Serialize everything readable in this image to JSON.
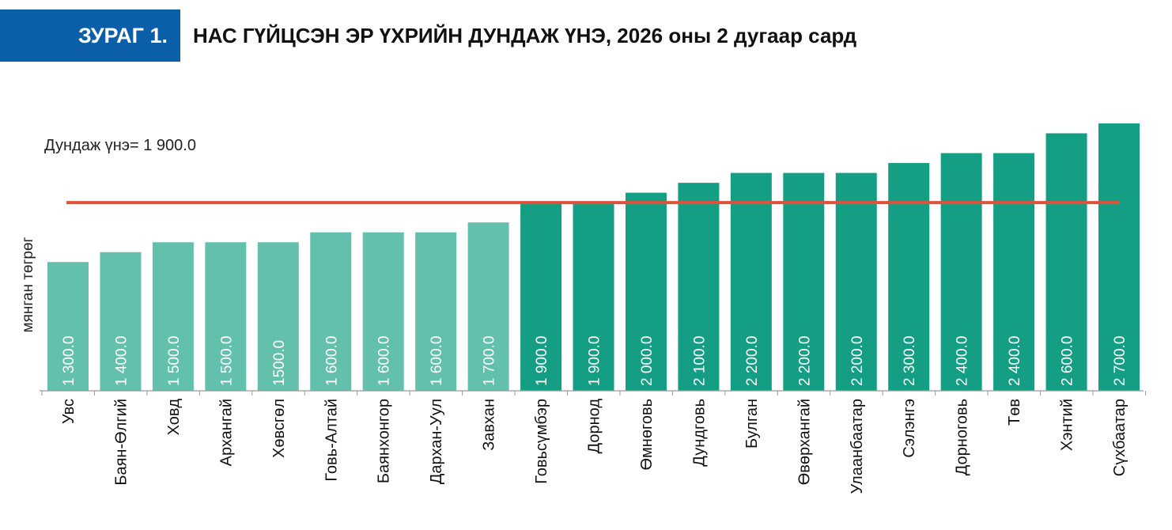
{
  "header": {
    "figure_label": "ЗУРАГ 1.",
    "title": "НАС ГҮЙЦСЭН ЭР ҮХРИЙН ДУНДАЖ ҮНЭ, 2026 оны 2 дугаар сард"
  },
  "colors": {
    "label_bg": "#0b5fa8",
    "bar_light": "#63c0ad",
    "bar_dark": "#149e83",
    "average_line": "#e0503a"
  },
  "chart_data": {
    "type": "bar",
    "title": "НАС ГҮЙЦСЭН ЭР ҮХРИЙН ДУНДАЖ ҮНЭ, 2026 оны 2 дугаар сард",
    "xlabel": "",
    "ylabel": "мянган төгрөг",
    "ylim": [
      0,
      2700
    ],
    "grid": false,
    "categories": [
      "Увс",
      "Баян-Өлгий",
      "Ховд",
      "Архангай",
      "Хөвсгөл",
      "Говь-Алтай",
      "Баянхонгор",
      "Дархан-Уул",
      "Завхан",
      "Говьсүмбэр",
      "Дорнод",
      "Өмнөговь",
      "Дундговь",
      "Булган",
      "Өвөрхангай",
      "Улаанбаатар",
      "Сэлэнгэ",
      "Дорноговь",
      "Төв",
      "Хэнтий",
      "Сүхбаатар"
    ],
    "values": [
      1300,
      1400,
      1500,
      1500,
      1500,
      1600,
      1600,
      1600,
      1700,
      1900,
      1900,
      2000,
      2100,
      2200,
      2200,
      2200,
      2300,
      2400,
      2400,
      2600,
      2700
    ],
    "data_labels": [
      "1 300.0",
      "1 400.0",
      "1 500.0",
      "1 500.0",
      "1500.0",
      "1 600.0",
      "1 600.0",
      "1 600.0",
      "1 700.0",
      "1 900.0",
      "1 900.0",
      "2 000.0",
      "2 100.0",
      "2 200.0",
      "2 200.0",
      "2 200.0",
      "2 300.0",
      "2 400.0",
      "2 400.0",
      "2 600.0",
      "2 700.0"
    ],
    "average": {
      "value": 1900,
      "label": "Дундаж үнэ= 1 900.0"
    }
  }
}
